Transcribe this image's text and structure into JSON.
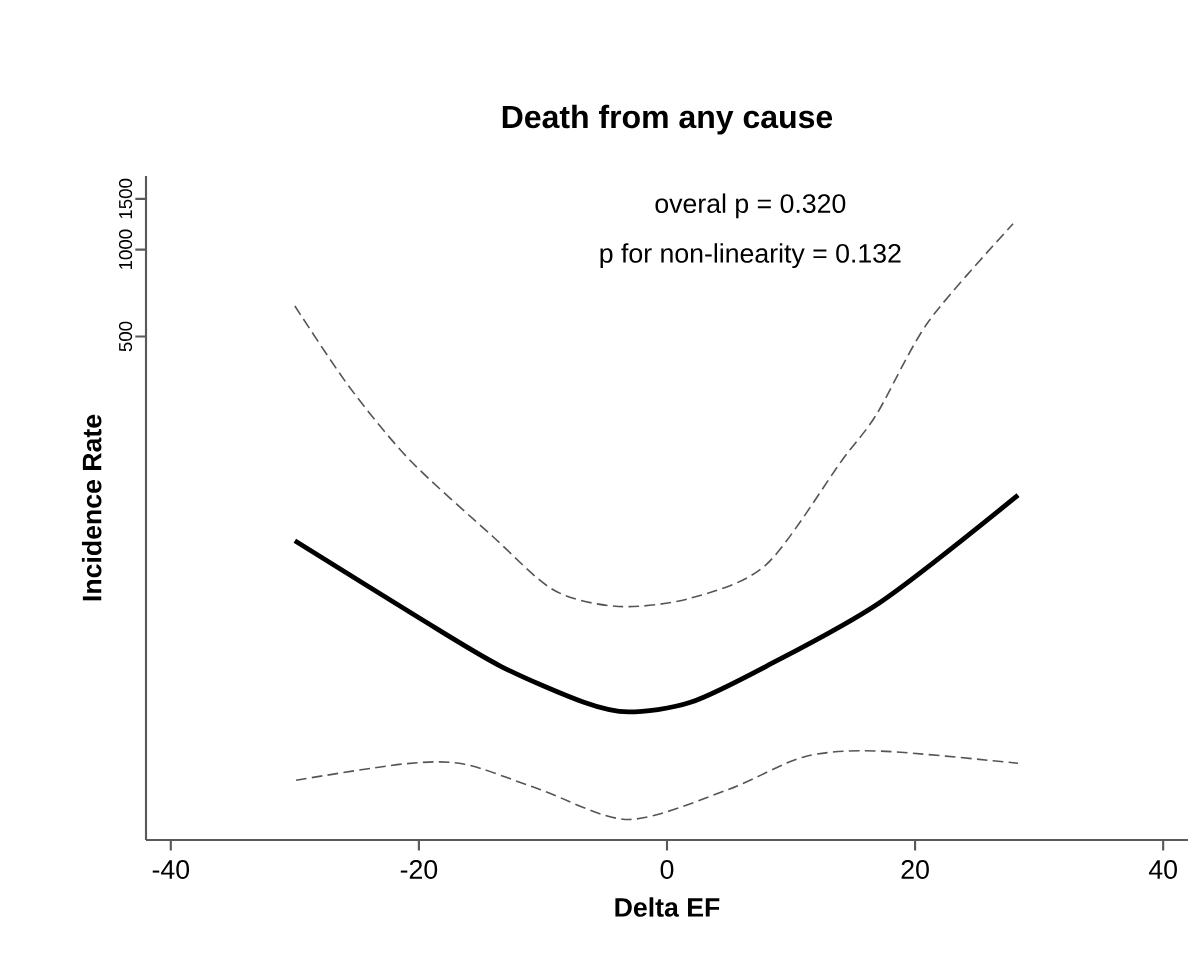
{
  "chart_data": {
    "type": "line",
    "title": "Death from any cause",
    "xlabel": "Delta EF",
    "ylabel": "Incidence Rate",
    "annotations": [
      "overal p = 0.320",
      "p for non-linearity = 0.132"
    ],
    "log": "y",
    "xlim": [
      -42,
      42
    ],
    "ylim": [
      9,
      1800
    ],
    "xticks": [
      -40,
      -20,
      0,
      20,
      40
    ],
    "yticks": [
      500,
      1000,
      1500
    ],
    "marker": "none",
    "series": [
      {
        "color": "#000000",
        "line_style": "solid",
        "x": [
          -30,
          -20,
          -13.4,
          -6.7,
          -3.1,
          1.9,
          8.0,
          17.2,
          28.3
        ],
        "values": [
          98,
          53,
          36,
          27,
          25,
          27,
          36,
          60,
          141
        ]
      },
      {
        "color": "#555555",
        "line_style": "dashed",
        "x": [
          -30,
          -25.6,
          -20.7,
          -14,
          -9.1,
          -3.9,
          1.9,
          8,
          14.1,
          16.9,
          21.1,
          27.9
        ],
        "values": [
          638,
          334,
          186,
          101,
          66,
          58,
          62,
          81,
          186,
          269,
          565,
          1229
        ]
      },
      {
        "color": "#555555",
        "line_style": "dashed",
        "x": [
          -29.9,
          -21.3,
          -16.4,
          -10.3,
          -3.1,
          5,
          11.1,
          17.2,
          28.3
        ],
        "values": [
          14.5,
          16.5,
          16.5,
          13.5,
          10.6,
          13.5,
          17.5,
          18.3,
          16.6
        ]
      }
    ]
  }
}
